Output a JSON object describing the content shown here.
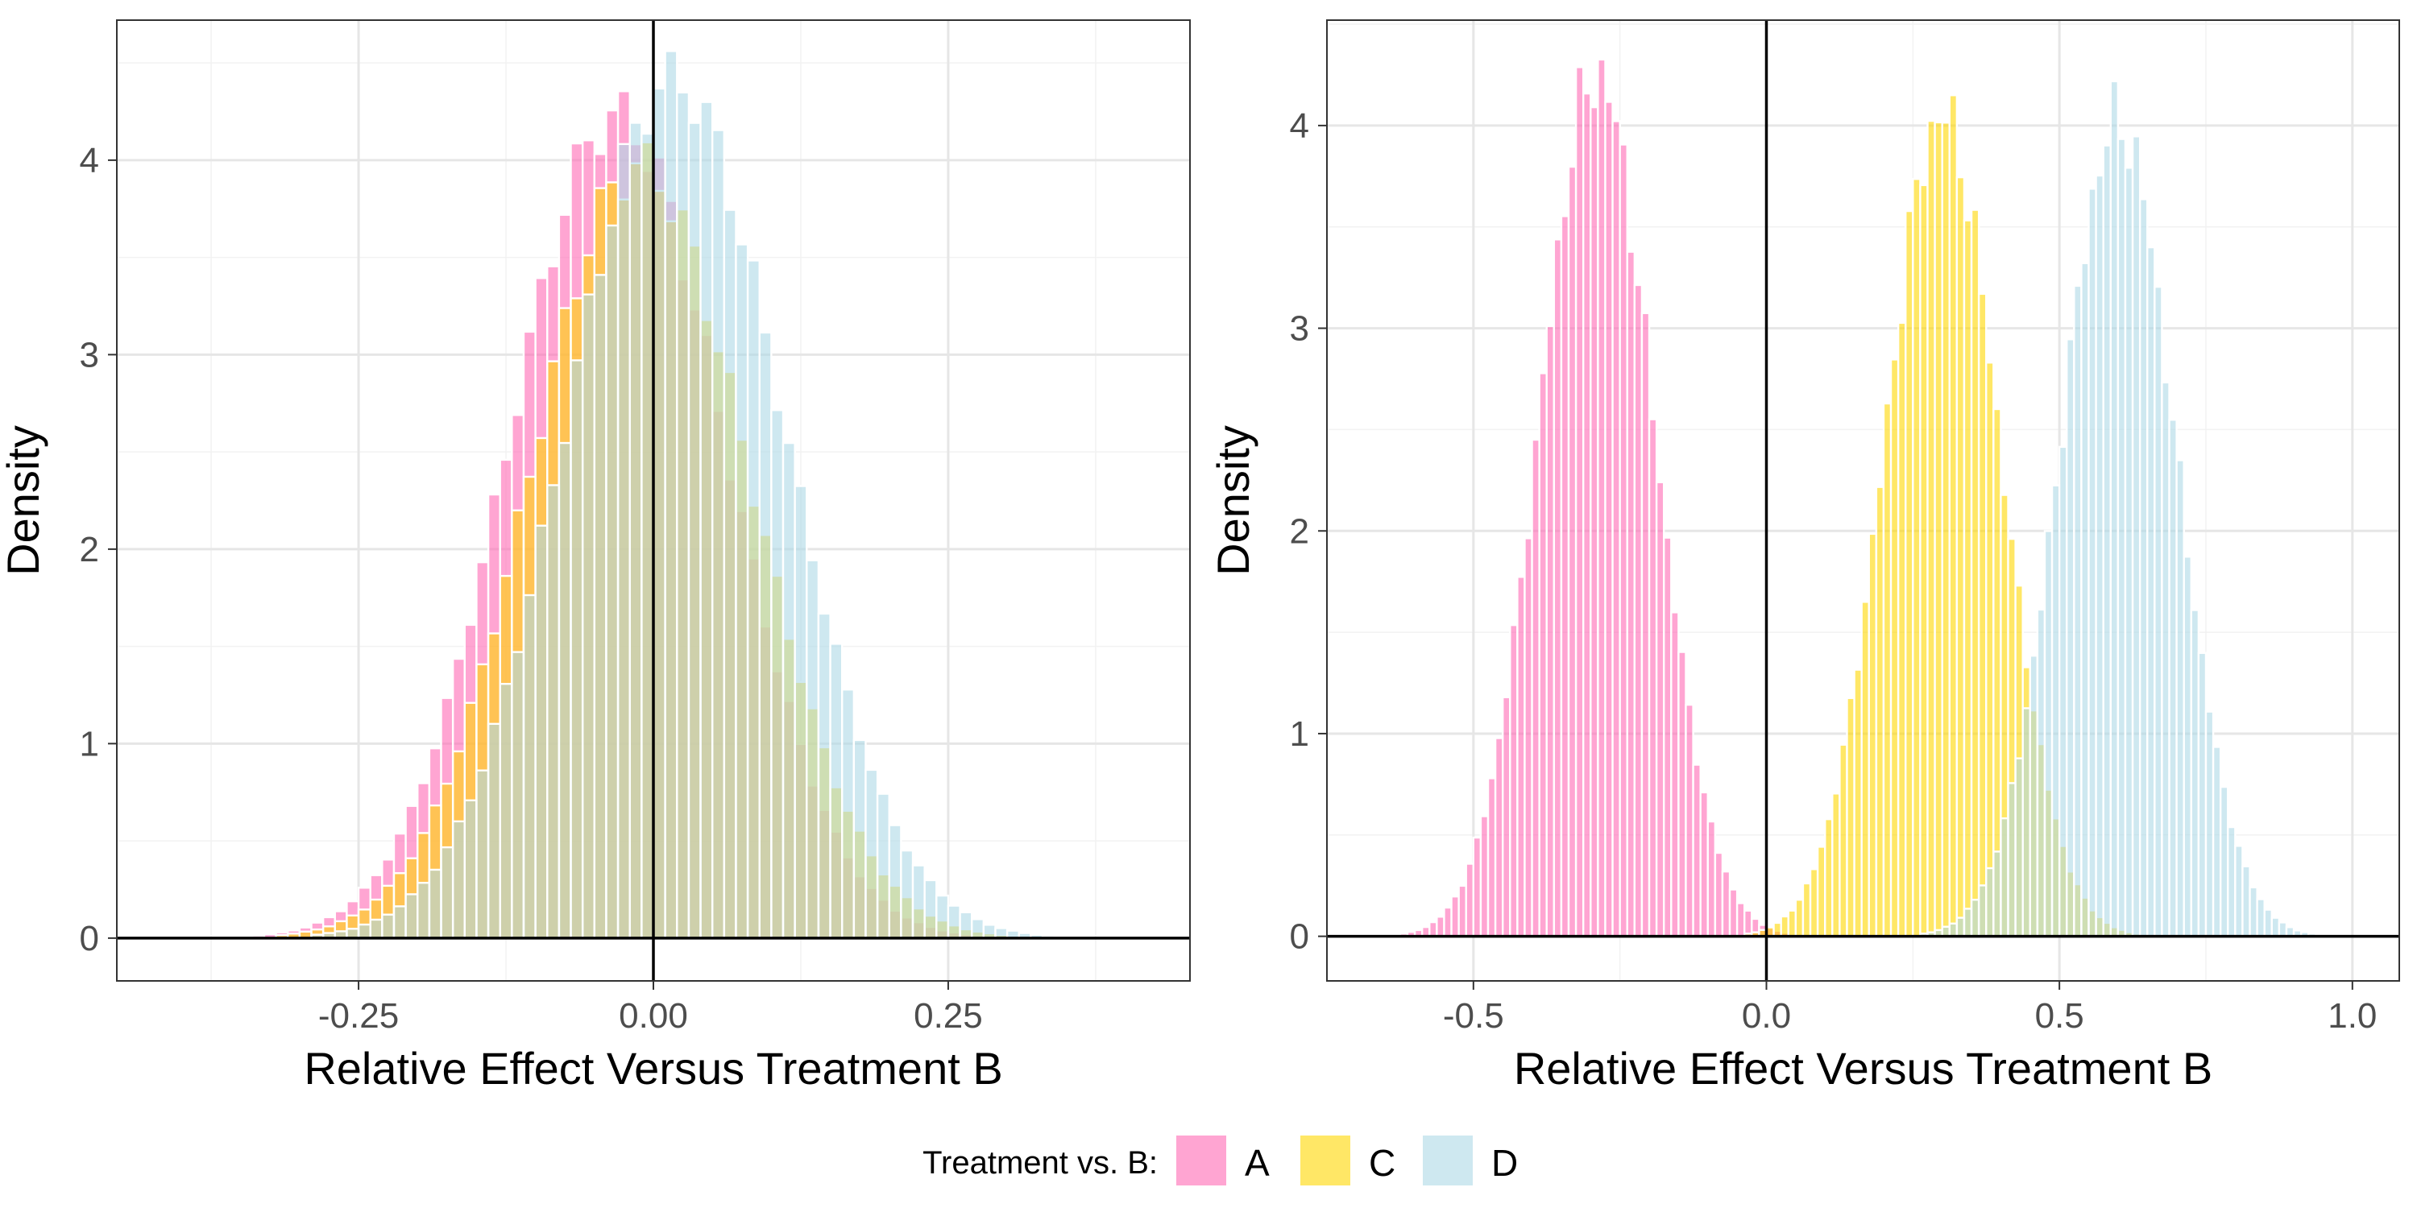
{
  "legend": {
    "title": "Treatment vs. B:",
    "position": "bottom",
    "entries": [
      {
        "key": "A",
        "label": "A",
        "color": "#ff69b4"
      },
      {
        "key": "C",
        "label": "C",
        "color": "#ffd700"
      },
      {
        "key": "D",
        "label": "D",
        "color": "#add8e6"
      }
    ]
  },
  "style": {
    "bar_alpha": 0.6,
    "bar_outline": "#ffffff",
    "reference_lines": "black lines at x = 0 and y = 0",
    "theme": "bw with light grey major and minor grid"
  },
  "chart_data": [
    {
      "type": "bar",
      "subtype": "overlaid histogram",
      "title": "",
      "xlabel": "Relative Effect Versus Treatment B",
      "ylabel": "Density",
      "xlim": [
        -0.455,
        0.455
      ],
      "ylim": [
        -0.22,
        4.72
      ],
      "xticks": [
        -0.25,
        0.0,
        0.25
      ],
      "xtick_labels": [
        "-0.25",
        "0.00",
        "0.25"
      ],
      "yticks": [
        0,
        1,
        2,
        3,
        4
      ],
      "ytick_labels": [
        "0",
        "1",
        "2",
        "3",
        "4"
      ],
      "grid": true,
      "bin_width": 0.01,
      "series": [
        {
          "name": "A",
          "mean": -0.03,
          "sd": 0.09,
          "peak_density": 4.3
        },
        {
          "name": "C",
          "mean": -0.01,
          "sd": 0.092,
          "peak_density": 4.0
        },
        {
          "name": "D",
          "mean": 0.02,
          "sd": 0.092,
          "peak_density": 4.4
        }
      ]
    },
    {
      "type": "bar",
      "subtype": "overlaid histogram",
      "title": "",
      "xlabel": "Relative Effect Versus Treatment B",
      "ylabel": "Density",
      "xlim": [
        -0.75,
        1.08
      ],
      "ylim": [
        -0.22,
        4.52
      ],
      "xticks": [
        -0.5,
        0.0,
        0.5,
        1.0
      ],
      "xtick_labels": [
        "-0.5",
        "0.0",
        "0.5",
        "1.0"
      ],
      "yticks": [
        0,
        1,
        2,
        3,
        4
      ],
      "ytick_labels": [
        "0",
        "1",
        "2",
        "3",
        "4"
      ],
      "grid": true,
      "bin_width": 0.0125,
      "series": [
        {
          "name": "A",
          "mean": -0.29,
          "sd": 0.097,
          "peak_density": 4.25
        },
        {
          "name": "C",
          "mean": 0.3,
          "sd": 0.098,
          "peak_density": 4.05
        },
        {
          "name": "D",
          "mean": 0.6,
          "sd": 0.098,
          "peak_density": 4.02
        }
      ]
    }
  ]
}
